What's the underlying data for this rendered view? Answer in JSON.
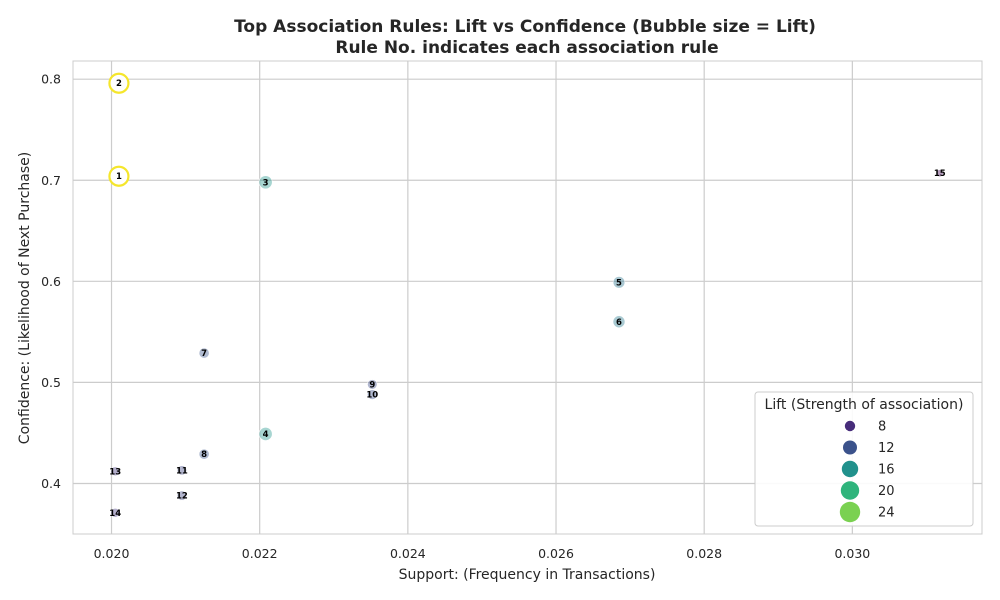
{
  "chart_data": {
    "type": "scatter",
    "title_lines": [
      "Top Association Rules: Lift vs Confidence (Bubble size = Lift)",
      "Rule No. indicates each association rule"
    ],
    "xlabel": "Support: (Frequency in Transactions)",
    "ylabel": "Confidence: (Likelihood of Next Purchase)",
    "xlim": [
      0.01948,
      0.03175
    ],
    "ylim": [
      0.35,
      0.818
    ],
    "x_ticks": [
      0.02,
      0.022,
      0.024,
      0.026,
      0.028,
      0.03
    ],
    "x_tick_labels": [
      "0.020",
      "0.022",
      "0.024",
      "0.026",
      "0.028",
      "0.030"
    ],
    "y_ticks": [
      0.4,
      0.5,
      0.6,
      0.7,
      0.8
    ],
    "y_tick_labels": [
      "0.4",
      "0.5",
      "0.6",
      "0.7",
      "0.8"
    ],
    "grid": true,
    "highlight_color": "#f5e62c",
    "points": [
      {
        "rule": "1",
        "support": 0.0201,
        "confidence": 0.704,
        "lift": 24.0,
        "highlight": true
      },
      {
        "rule": "2",
        "support": 0.0201,
        "confidence": 0.796,
        "lift": 26.0,
        "highlight": true
      },
      {
        "rule": "3",
        "support": 0.02208,
        "confidence": 0.698,
        "lift": 14.5,
        "highlight": false
      },
      {
        "rule": "4",
        "support": 0.02208,
        "confidence": 0.449,
        "lift": 14.5,
        "highlight": false
      },
      {
        "rule": "5",
        "support": 0.02685,
        "confidence": 0.599,
        "lift": 11.5,
        "highlight": false
      },
      {
        "rule": "6",
        "support": 0.02685,
        "confidence": 0.56,
        "lift": 12.0,
        "highlight": false
      },
      {
        "rule": "7",
        "support": 0.02125,
        "confidence": 0.529,
        "lift": 8.5,
        "highlight": false
      },
      {
        "rule": "8",
        "support": 0.02125,
        "confidence": 0.429,
        "lift": 8.5,
        "highlight": false
      },
      {
        "rule": "9",
        "support": 0.02352,
        "confidence": 0.498,
        "lift": 7.5,
        "highlight": false
      },
      {
        "rule": "10",
        "support": 0.02352,
        "confidence": 0.488,
        "lift": 8.0,
        "highlight": false
      },
      {
        "rule": "11",
        "support": 0.02095,
        "confidence": 0.413,
        "lift": 7.0,
        "highlight": false
      },
      {
        "rule": "12",
        "support": 0.02095,
        "confidence": 0.388,
        "lift": 7.0,
        "highlight": false
      },
      {
        "rule": "13",
        "support": 0.02005,
        "confidence": 0.412,
        "lift": 6.0,
        "highlight": false
      },
      {
        "rule": "14",
        "support": 0.02005,
        "confidence": 0.371,
        "lift": 6.0,
        "highlight": false
      },
      {
        "rule": "15",
        "support": 0.03118,
        "confidence": 0.707,
        "lift": 2.5,
        "highlight": false
      }
    ],
    "legend": {
      "title": "Lift (Strength of association)",
      "placement": "lower-right",
      "entries": [
        {
          "label": "8",
          "lift": 8,
          "color": "#472d7b"
        },
        {
          "label": "12",
          "lift": 12,
          "color": "#3b528b"
        },
        {
          "label": "16",
          "lift": 16,
          "color": "#21918c"
        },
        {
          "label": "20",
          "lift": 20,
          "color": "#2fb47c"
        },
        {
          "label": "24",
          "lift": 24,
          "color": "#7ad151"
        }
      ]
    }
  }
}
